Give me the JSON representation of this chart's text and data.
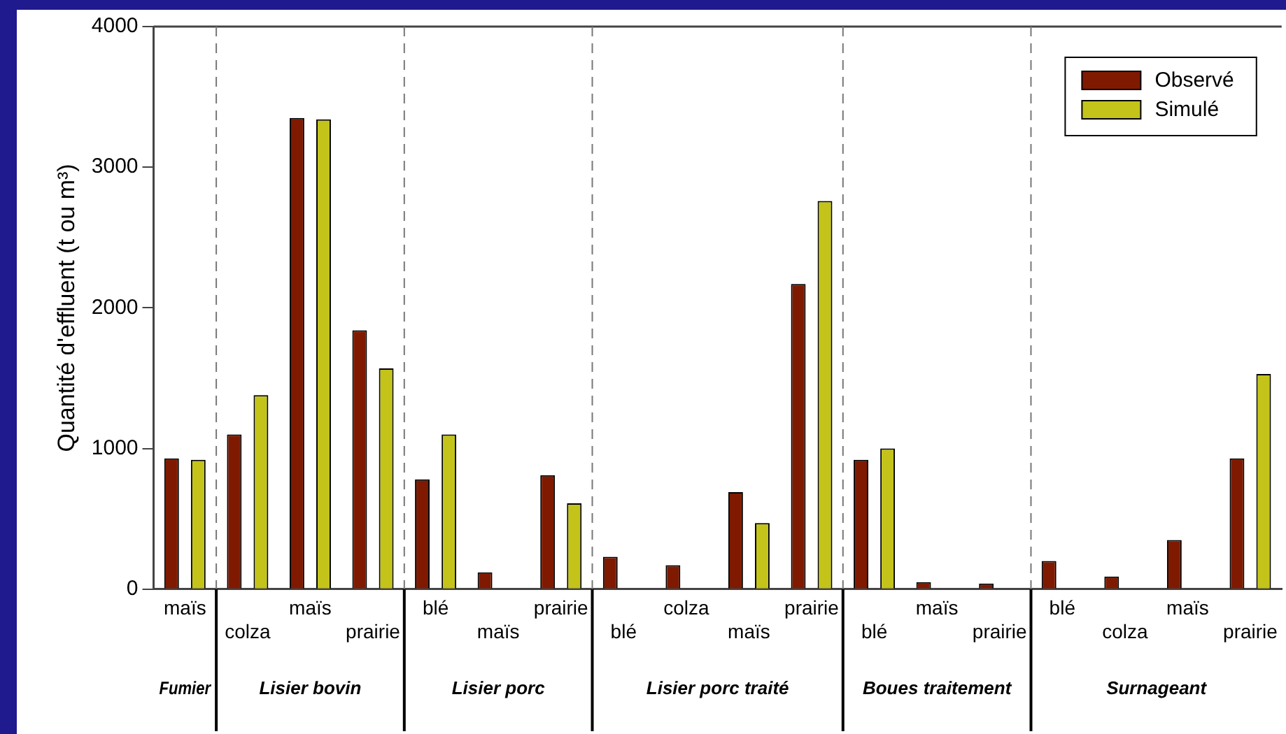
{
  "chart_data": {
    "type": "bar",
    "ylabel": "Quantité d'effluent (t ou m³)",
    "categories": [
      "maïs",
      "colza",
      "maïs",
      "prairie",
      "blé",
      "maïs",
      "prairie",
      "blé",
      "colza",
      "maïs",
      "prairie",
      "blé",
      "maïs",
      "prairie",
      "blé",
      "colza",
      "maïs",
      "prairie"
    ],
    "series": [
      {
        "name": "Observé",
        "color": "#7f1a00",
        "values": [
          930,
          1100,
          3350,
          1840,
          780,
          120,
          810,
          230,
          170,
          690,
          2170,
          920,
          50,
          40,
          200,
          90,
          350,
          930
        ]
      },
      {
        "name": "Simulé",
        "color": "#c3c31a",
        "values": [
          920,
          1380,
          3340,
          1570,
          1100,
          null,
          610,
          null,
          null,
          470,
          2760,
          1000,
          null,
          null,
          null,
          null,
          null,
          1530
        ]
      }
    ],
    "ylim": [
      0,
      4000
    ],
    "yticks": [
      0,
      1000,
      2000,
      3000,
      4000
    ],
    "annotations": [
      "Fumier",
      "Lisier bovin",
      "Lisier porc",
      "Lisier porc traité",
      "Boues traitement",
      "Surnageant"
    ],
    "legend": "top right",
    "grid": false
  }
}
